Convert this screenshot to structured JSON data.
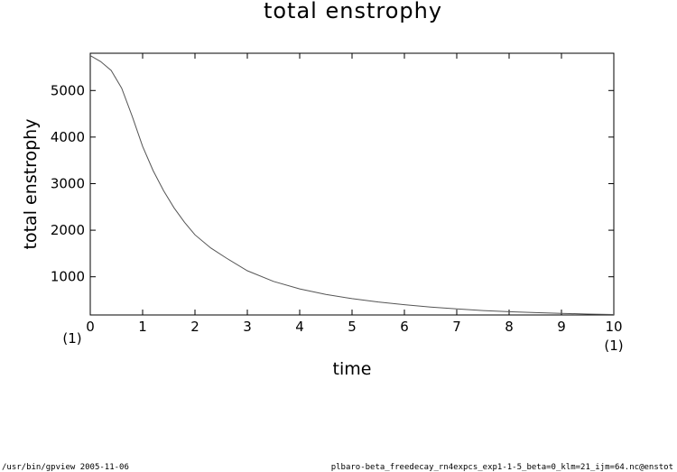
{
  "chart_data": {
    "type": "line",
    "title": "total enstrophy",
    "xlabel": "time",
    "ylabel": "total enstrophy",
    "xlim": [
      0,
      10
    ],
    "ylim": [
      180,
      5800
    ],
    "x_ticks": [
      0,
      1,
      2,
      3,
      4,
      5,
      6,
      7,
      8,
      9,
      10
    ],
    "y_ticks": [
      1000,
      2000,
      3000,
      4000,
      5000
    ],
    "x_scale_note_left": "(1)",
    "x_scale_note_right": "(1)",
    "grid": false,
    "series": [
      {
        "color": "#555555",
        "x": [
          0,
          0.2,
          0.4,
          0.6,
          0.8,
          1.0,
          1.2,
          1.4,
          1.6,
          1.8,
          2.0,
          2.3,
          2.6,
          3.0,
          3.5,
          4.0,
          4.5,
          5.0,
          5.5,
          6.0,
          6.5,
          7.0,
          7.5,
          8.0,
          8.5,
          9.0,
          9.5,
          10.0
        ],
        "y": [
          5750,
          5620,
          5430,
          5050,
          4450,
          3800,
          3280,
          2850,
          2480,
          2170,
          1900,
          1620,
          1400,
          1130,
          900,
          740,
          620,
          530,
          460,
          400,
          350,
          310,
          275,
          250,
          230,
          215,
          200,
          190
        ]
      }
    ]
  },
  "footer": {
    "left": "/usr/bin/gpview   2005-11-06",
    "right": "plbaro-beta_freedecay_rn4expcs_exp1-1-5_beta=0_klm=21_ijm=64.nc@enstot"
  }
}
